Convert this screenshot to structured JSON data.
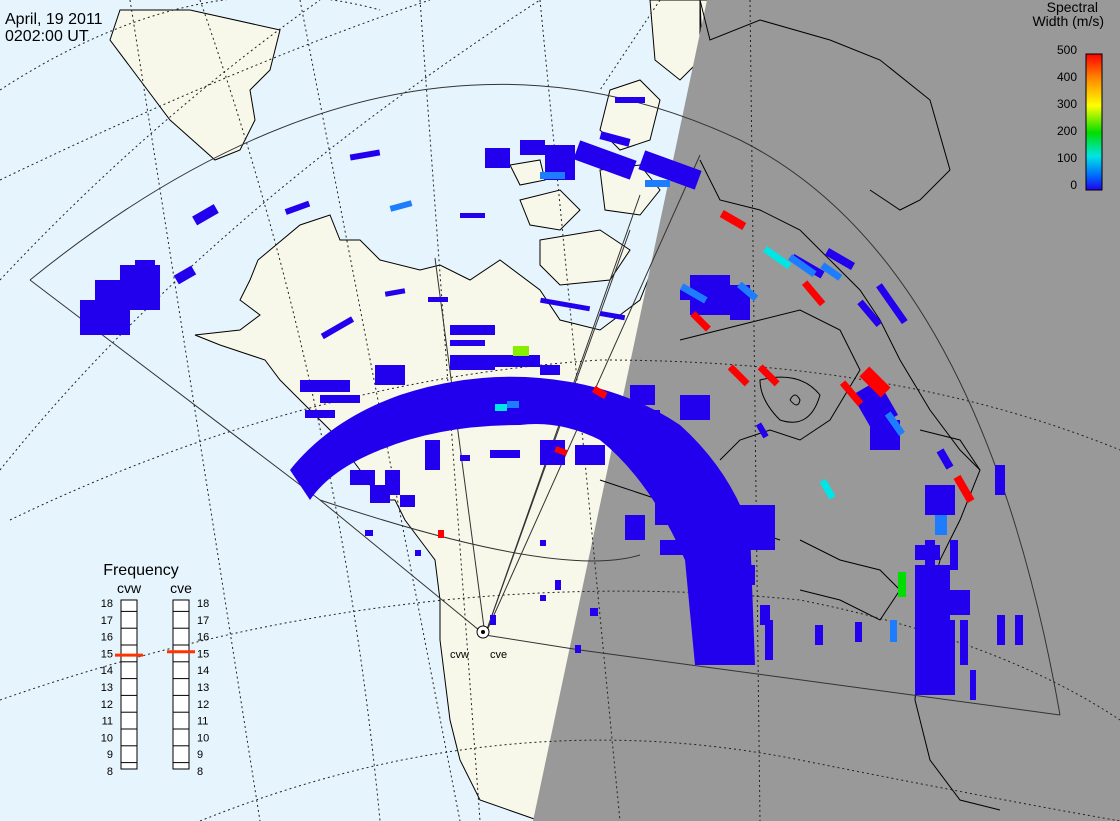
{
  "header": {
    "date": "April, 19 2011",
    "time": "0202:00 UT"
  },
  "colorbar": {
    "title_line1": "Spectral",
    "title_line2": "Width (m/s)",
    "ticks": [
      "500",
      "400",
      "300",
      "200",
      "100",
      "0"
    ],
    "max_value": 500,
    "colors": [
      "#ff0000",
      "#ff8800",
      "#ffff00",
      "#00dd00",
      "#00e5e5",
      "#0066ff",
      "#2200ee"
    ]
  },
  "frequency_panel": {
    "title": "Frequency",
    "left_label": "cvw",
    "right_label": "cve",
    "scale": [
      "18",
      "17",
      "16",
      "15",
      "14",
      "13",
      "12",
      "11",
      "10",
      "9",
      "8"
    ],
    "cvw_value": 14.9,
    "cve_value": 15.1,
    "marker_color": "#ff3300"
  },
  "radars": {
    "cvw_label": "cvw",
    "cve_label": "cve"
  },
  "map": {
    "ocean_color": "#e6f5fd",
    "land_color": "#f7f7ea",
    "night_color": "#999999",
    "coast_color": "#000000",
    "echo_base_color": "#2200ee"
  }
}
